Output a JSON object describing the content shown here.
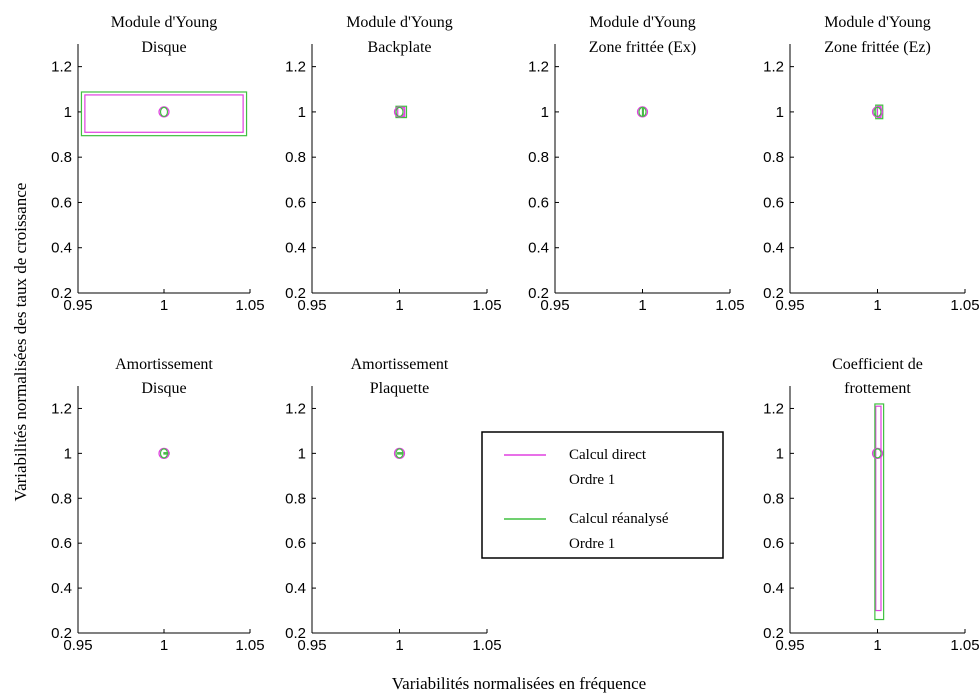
{
  "xlabel": "Variabilités normalisées en fréquence",
  "ylabel": "Variabilités normalisées des taux de croissance",
  "legend": {
    "placement": "center",
    "items": [
      {
        "line1": "Calcul direct",
        "line2": "Ordre 1",
        "color": "#e040e0"
      },
      {
        "line1": "Calcul réanalysé",
        "line2": "Ordre 1",
        "color": "#40c040"
      }
    ]
  },
  "colors": {
    "direct": "#e040e0",
    "reanalyse": "#40c040"
  },
  "chart_data": [
    {
      "type": "scatter",
      "title": [
        "Module d'Young",
        "Disque"
      ],
      "xlim": [
        0.95,
        1.05
      ],
      "ylim": [
        0.2,
        1.3
      ],
      "xticks": [
        "0.95",
        "1",
        "1.05"
      ],
      "yticks": [
        "0.2",
        "0.4",
        "0.6",
        "0.8",
        "1",
        "1.2"
      ],
      "series": [
        {
          "color_key": "direct",
          "point": [
            1,
            1
          ],
          "box": [
            0.954,
            1.046,
            0.91,
            1.075
          ]
        },
        {
          "color_key": "reanalyse",
          "point": [
            1,
            1
          ],
          "box": [
            0.952,
            1.048,
            0.895,
            1.088
          ]
        }
      ]
    },
    {
      "type": "scatter",
      "title": [
        "Module d'Young",
        "Backplate"
      ],
      "xlim": [
        0.95,
        1.05
      ],
      "ylim": [
        0.2,
        1.3
      ],
      "xticks": [
        "0.95",
        "1",
        "1.05"
      ],
      "yticks": [
        "0.2",
        "0.4",
        "0.6",
        "0.8",
        "1",
        "1.2"
      ],
      "series": [
        {
          "color_key": "direct",
          "point": [
            1,
            1
          ],
          "box": [
            0.999,
            1.003,
            0.98,
            1.02
          ]
        },
        {
          "color_key": "reanalyse",
          "point": [
            1,
            1
          ],
          "box": [
            0.998,
            1.004,
            0.975,
            1.025
          ]
        }
      ]
    },
    {
      "type": "scatter",
      "title": [
        "Module d'Young",
        "Zone frittée (Ex)"
      ],
      "xlim": [
        0.95,
        1.05
      ],
      "ylim": [
        0.2,
        1.3
      ],
      "xticks": [
        "0.95",
        "1",
        "1.05"
      ],
      "yticks": [
        "0.2",
        "0.4",
        "0.6",
        "0.8",
        "1",
        "1.2"
      ],
      "series": [
        {
          "color_key": "direct",
          "point": [
            1,
            1
          ],
          "box": [
            1.0,
            1.0,
            0.985,
            1.015
          ]
        },
        {
          "color_key": "reanalyse",
          "point": [
            1,
            1
          ],
          "box": [
            1.0,
            1.0,
            0.98,
            1.02
          ]
        }
      ]
    },
    {
      "type": "scatter",
      "title": [
        "Module d'Young",
        "Zone frittée (Ez)"
      ],
      "xlim": [
        0.95,
        1.05
      ],
      "ylim": [
        0.2,
        1.3
      ],
      "xticks": [
        "0.95",
        "1",
        "1.05"
      ],
      "yticks": [
        "0.2",
        "0.4",
        "0.6",
        "0.8",
        "1",
        "1.2"
      ],
      "series": [
        {
          "color_key": "direct",
          "point": [
            1,
            1
          ],
          "box": [
            1.0,
            1.002,
            0.975,
            1.025
          ]
        },
        {
          "color_key": "reanalyse",
          "point": [
            1,
            1
          ],
          "box": [
            0.999,
            1.003,
            0.97,
            1.03
          ]
        }
      ]
    },
    {
      "type": "scatter",
      "title": [
        "Amortissement",
        "Disque"
      ],
      "xlim": [
        0.95,
        1.05
      ],
      "ylim": [
        0.2,
        1.3
      ],
      "xticks": [
        "0.95",
        "1",
        "1.05"
      ],
      "yticks": [
        "0.2",
        "0.4",
        "0.6",
        "0.8",
        "1",
        "1.2"
      ],
      "series": [
        {
          "color_key": "direct",
          "point": [
            1,
            1
          ],
          "box": [
            1.0,
            1.002,
            0.998,
            1.002
          ]
        },
        {
          "color_key": "reanalyse",
          "point": [
            1,
            1
          ],
          "box": [
            1.0,
            1.003,
            0.997,
            1.003
          ]
        }
      ]
    },
    {
      "type": "scatter",
      "title": [
        "Amortissement",
        "Plaquette"
      ],
      "xlim": [
        0.95,
        1.05
      ],
      "ylim": [
        0.2,
        1.3
      ],
      "xticks": [
        "0.95",
        "1",
        "1.05"
      ],
      "yticks": [
        "0.2",
        "0.4",
        "0.6",
        "0.8",
        "1",
        "1.2"
      ],
      "series": [
        {
          "color_key": "direct",
          "point": [
            1,
            1
          ],
          "box": [
            0.999,
            1.002,
            0.998,
            1.002
          ]
        },
        {
          "color_key": "reanalyse",
          "point": [
            1,
            1
          ],
          "box": [
            0.999,
            1.002,
            0.997,
            1.003
          ]
        }
      ]
    },
    {
      "type": "scatter",
      "title": [
        "Coefficient de",
        "frottement"
      ],
      "xlim": [
        0.95,
        1.05
      ],
      "ylim": [
        0.2,
        1.3
      ],
      "xticks": [
        "0.95",
        "1",
        "1.05"
      ],
      "yticks": [
        "0.2",
        "0.4",
        "0.6",
        "0.8",
        "1",
        "1.2"
      ],
      "series": [
        {
          "color_key": "direct",
          "point": [
            1,
            1
          ],
          "box": [
            0.999,
            1.002,
            0.3,
            1.21
          ]
        },
        {
          "color_key": "reanalyse",
          "point": [
            1,
            1
          ],
          "box": [
            0.9985,
            1.0035,
            0.26,
            1.22
          ]
        }
      ]
    }
  ]
}
